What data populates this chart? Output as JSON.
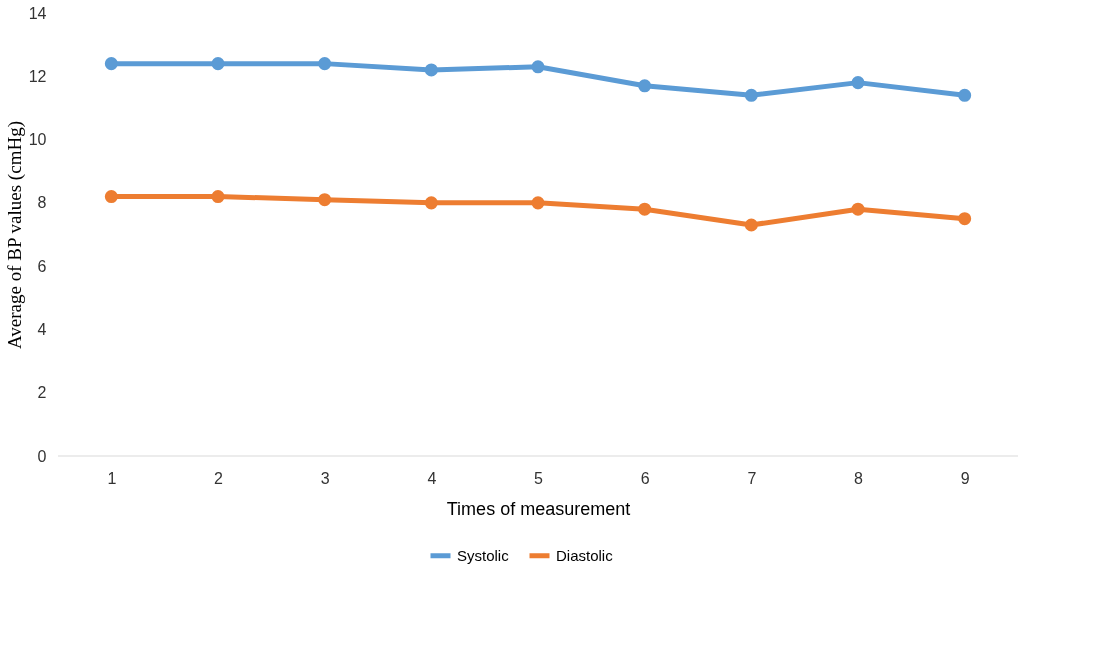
{
  "chart_data": {
    "type": "line",
    "xlabel": "Times of measurement",
    "ylabel": "Average of BP values (cmHg)",
    "categories": [
      "1",
      "2",
      "3",
      "4",
      "5",
      "6",
      "7",
      "8",
      "9"
    ],
    "series": [
      {
        "name": "Systolic",
        "color": "#5b9bd5",
        "values": [
          12.4,
          12.4,
          12.4,
          12.2,
          12.3,
          11.7,
          11.4,
          11.8,
          11.4
        ]
      },
      {
        "name": "Diastolic",
        "color": "#ed7d31",
        "values": [
          8.2,
          8.2,
          8.1,
          8.0,
          8.0,
          7.8,
          7.3,
          7.8,
          7.5
        ]
      }
    ],
    "ylim": [
      0,
      14
    ],
    "yticks": [
      0,
      2,
      4,
      6,
      8,
      10,
      12,
      14
    ],
    "grid": false,
    "legend": "bottom",
    "marker": "circle",
    "line_style": "solid"
  }
}
